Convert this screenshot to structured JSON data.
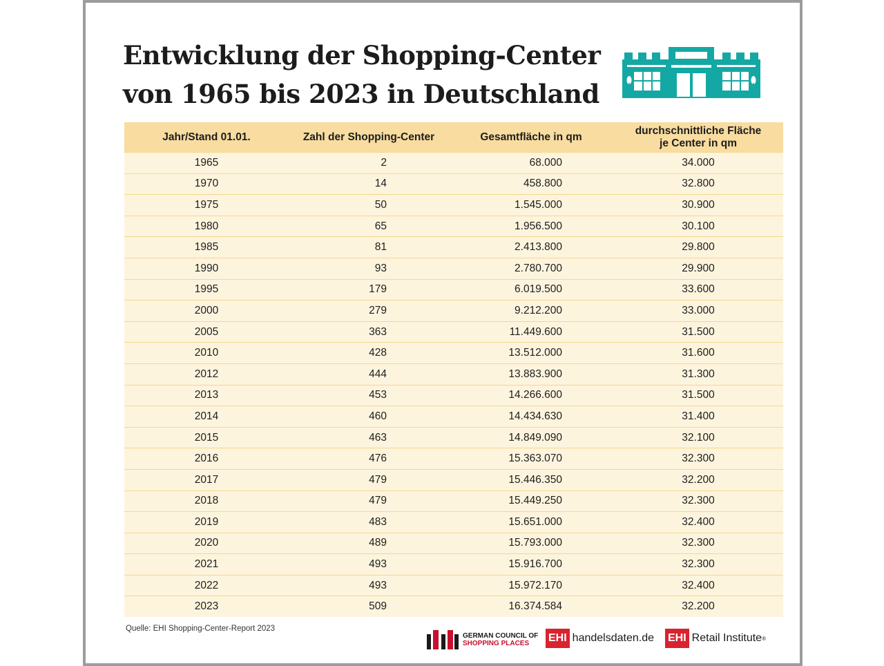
{
  "title": {
    "line1": "Entwicklung der Shopping-Center",
    "line2": "von 1965 bis 2023 in Deutschland"
  },
  "icons": {
    "store": "shopping-center-building-icon"
  },
  "colors": {
    "accent": "#14a8a4",
    "header_bg": "#f8dca0",
    "row_bg": "#fdf4de",
    "brand_red": "#d9232e"
  },
  "chart_data": {
    "type": "table",
    "columns": [
      "Jahr/Stand 01.01.",
      "Zahl der Shopping-Center",
      "Gesamtfläche in qm",
      "durchschnittliche Fläche\nje Center in qm"
    ],
    "rows": [
      [
        "1965",
        "2",
        "68.000",
        "34.000"
      ],
      [
        "1970",
        "14",
        "458.800",
        "32.800"
      ],
      [
        "1975",
        "50",
        "1.545.000",
        "30.900"
      ],
      [
        "1980",
        "65",
        "1.956.500",
        "30.100"
      ],
      [
        "1985",
        "81",
        "2.413.800",
        "29.800"
      ],
      [
        "1990",
        "93",
        "2.780.700",
        "29.900"
      ],
      [
        "1995",
        "179",
        "6.019.500",
        "33.600"
      ],
      [
        "2000",
        "279",
        "9.212.200",
        "33.000"
      ],
      [
        "2005",
        "363",
        "11.449.600",
        "31.500"
      ],
      [
        "2010",
        "428",
        "13.512.000",
        "31.600"
      ],
      [
        "2012",
        "444",
        "13.883.900",
        "31.300"
      ],
      [
        "2013",
        "453",
        "14.266.600",
        "31.500"
      ],
      [
        "2014",
        "460",
        "14.434.630",
        "31.400"
      ],
      [
        "2015",
        "463",
        "14.849.090",
        "32.100"
      ],
      [
        "2016",
        "476",
        "15.363.070",
        "32.300"
      ],
      [
        "2017",
        "479",
        "15.446.350",
        "32.200"
      ],
      [
        "2018",
        "479",
        "15.449.250",
        "32.300"
      ],
      [
        "2019",
        "483",
        "15.651.000",
        "32.400"
      ],
      [
        "2020",
        "489",
        "15.793.000",
        "32.300"
      ],
      [
        "2021",
        "493",
        "15.916.700",
        "32.300"
      ],
      [
        "2022",
        "493",
        "15.972.170",
        "32.400"
      ],
      [
        "2023",
        "509",
        "16.374.584",
        "32.200"
      ]
    ]
  },
  "footer": {
    "source": "Quelle: EHI Shopping-Center-Report 2023",
    "logo_gcsp": {
      "line1": "GERMAN COUNCIL OF",
      "line2": "SHOPPING PLACES"
    },
    "logo_handels": {
      "box": "EHI",
      "word": "handelsdaten.de"
    },
    "logo_retail": {
      "box": "EHI",
      "word": "Retail Institute",
      "mark": "®"
    }
  }
}
